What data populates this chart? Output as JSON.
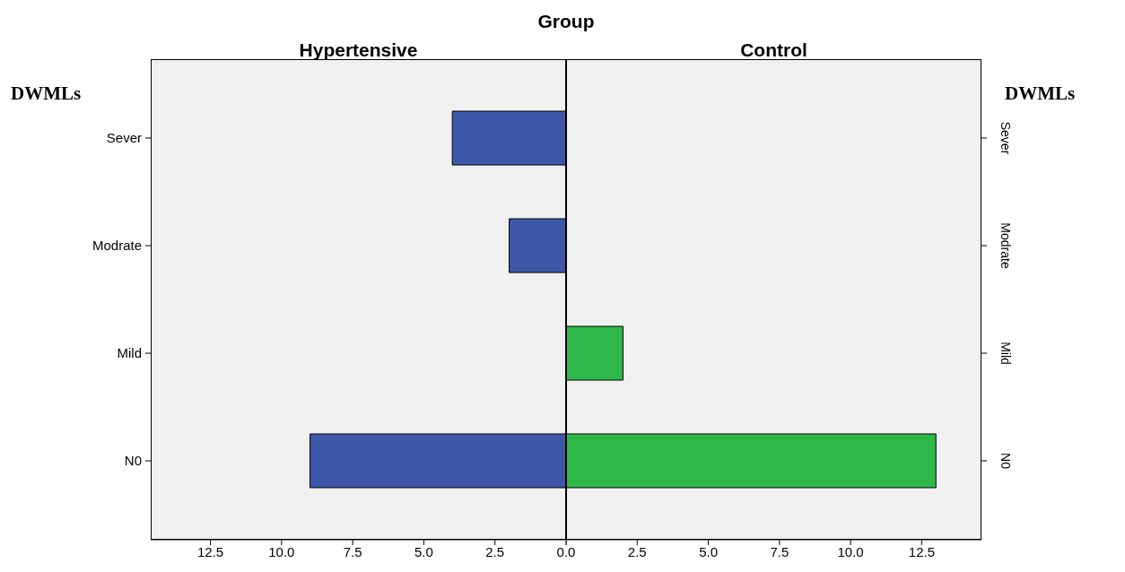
{
  "chart_data": [
    {
      "type": "bar",
      "orientation": "horizontal",
      "title": "Hypertensive",
      "annotations": [
        "Group"
      ],
      "ylabel": "DWMLs",
      "categories": [
        "Sever",
        "Modrate",
        "Mild",
        "N0"
      ],
      "values": [
        4,
        2,
        0,
        9
      ],
      "color": "#3f57a8",
      "xlim": [
        14.6,
        0
      ],
      "xticks": [
        {
          "value": 12.5,
          "label": "12.5"
        },
        {
          "value": 10,
          "label": "10.0"
        },
        {
          "value": 7.5,
          "label": "7.5"
        },
        {
          "value": 5,
          "label": "5.0"
        },
        {
          "value": 2.5,
          "label": "2.5"
        },
        {
          "value": 0,
          "label": "0.0"
        }
      ],
      "grid": false
    },
    {
      "type": "bar",
      "orientation": "horizontal",
      "title": "Control",
      "ylabel": "DWMLs",
      "categories": [
        "Sever",
        "Modrate",
        "Mild",
        "N0"
      ],
      "values": [
        0,
        0,
        2,
        13
      ],
      "color": "#2eb84a",
      "xlim": [
        0,
        14.6
      ],
      "xticks": [
        {
          "value": 0,
          "label": null
        },
        {
          "value": 2.5,
          "label": "2.5"
        },
        {
          "value": 5,
          "label": "5.0"
        },
        {
          "value": 7.5,
          "label": "7.5"
        },
        {
          "value": 10,
          "label": "10.0"
        },
        {
          "value": 12.5,
          "label": "12.5"
        }
      ],
      "grid": false
    }
  ]
}
